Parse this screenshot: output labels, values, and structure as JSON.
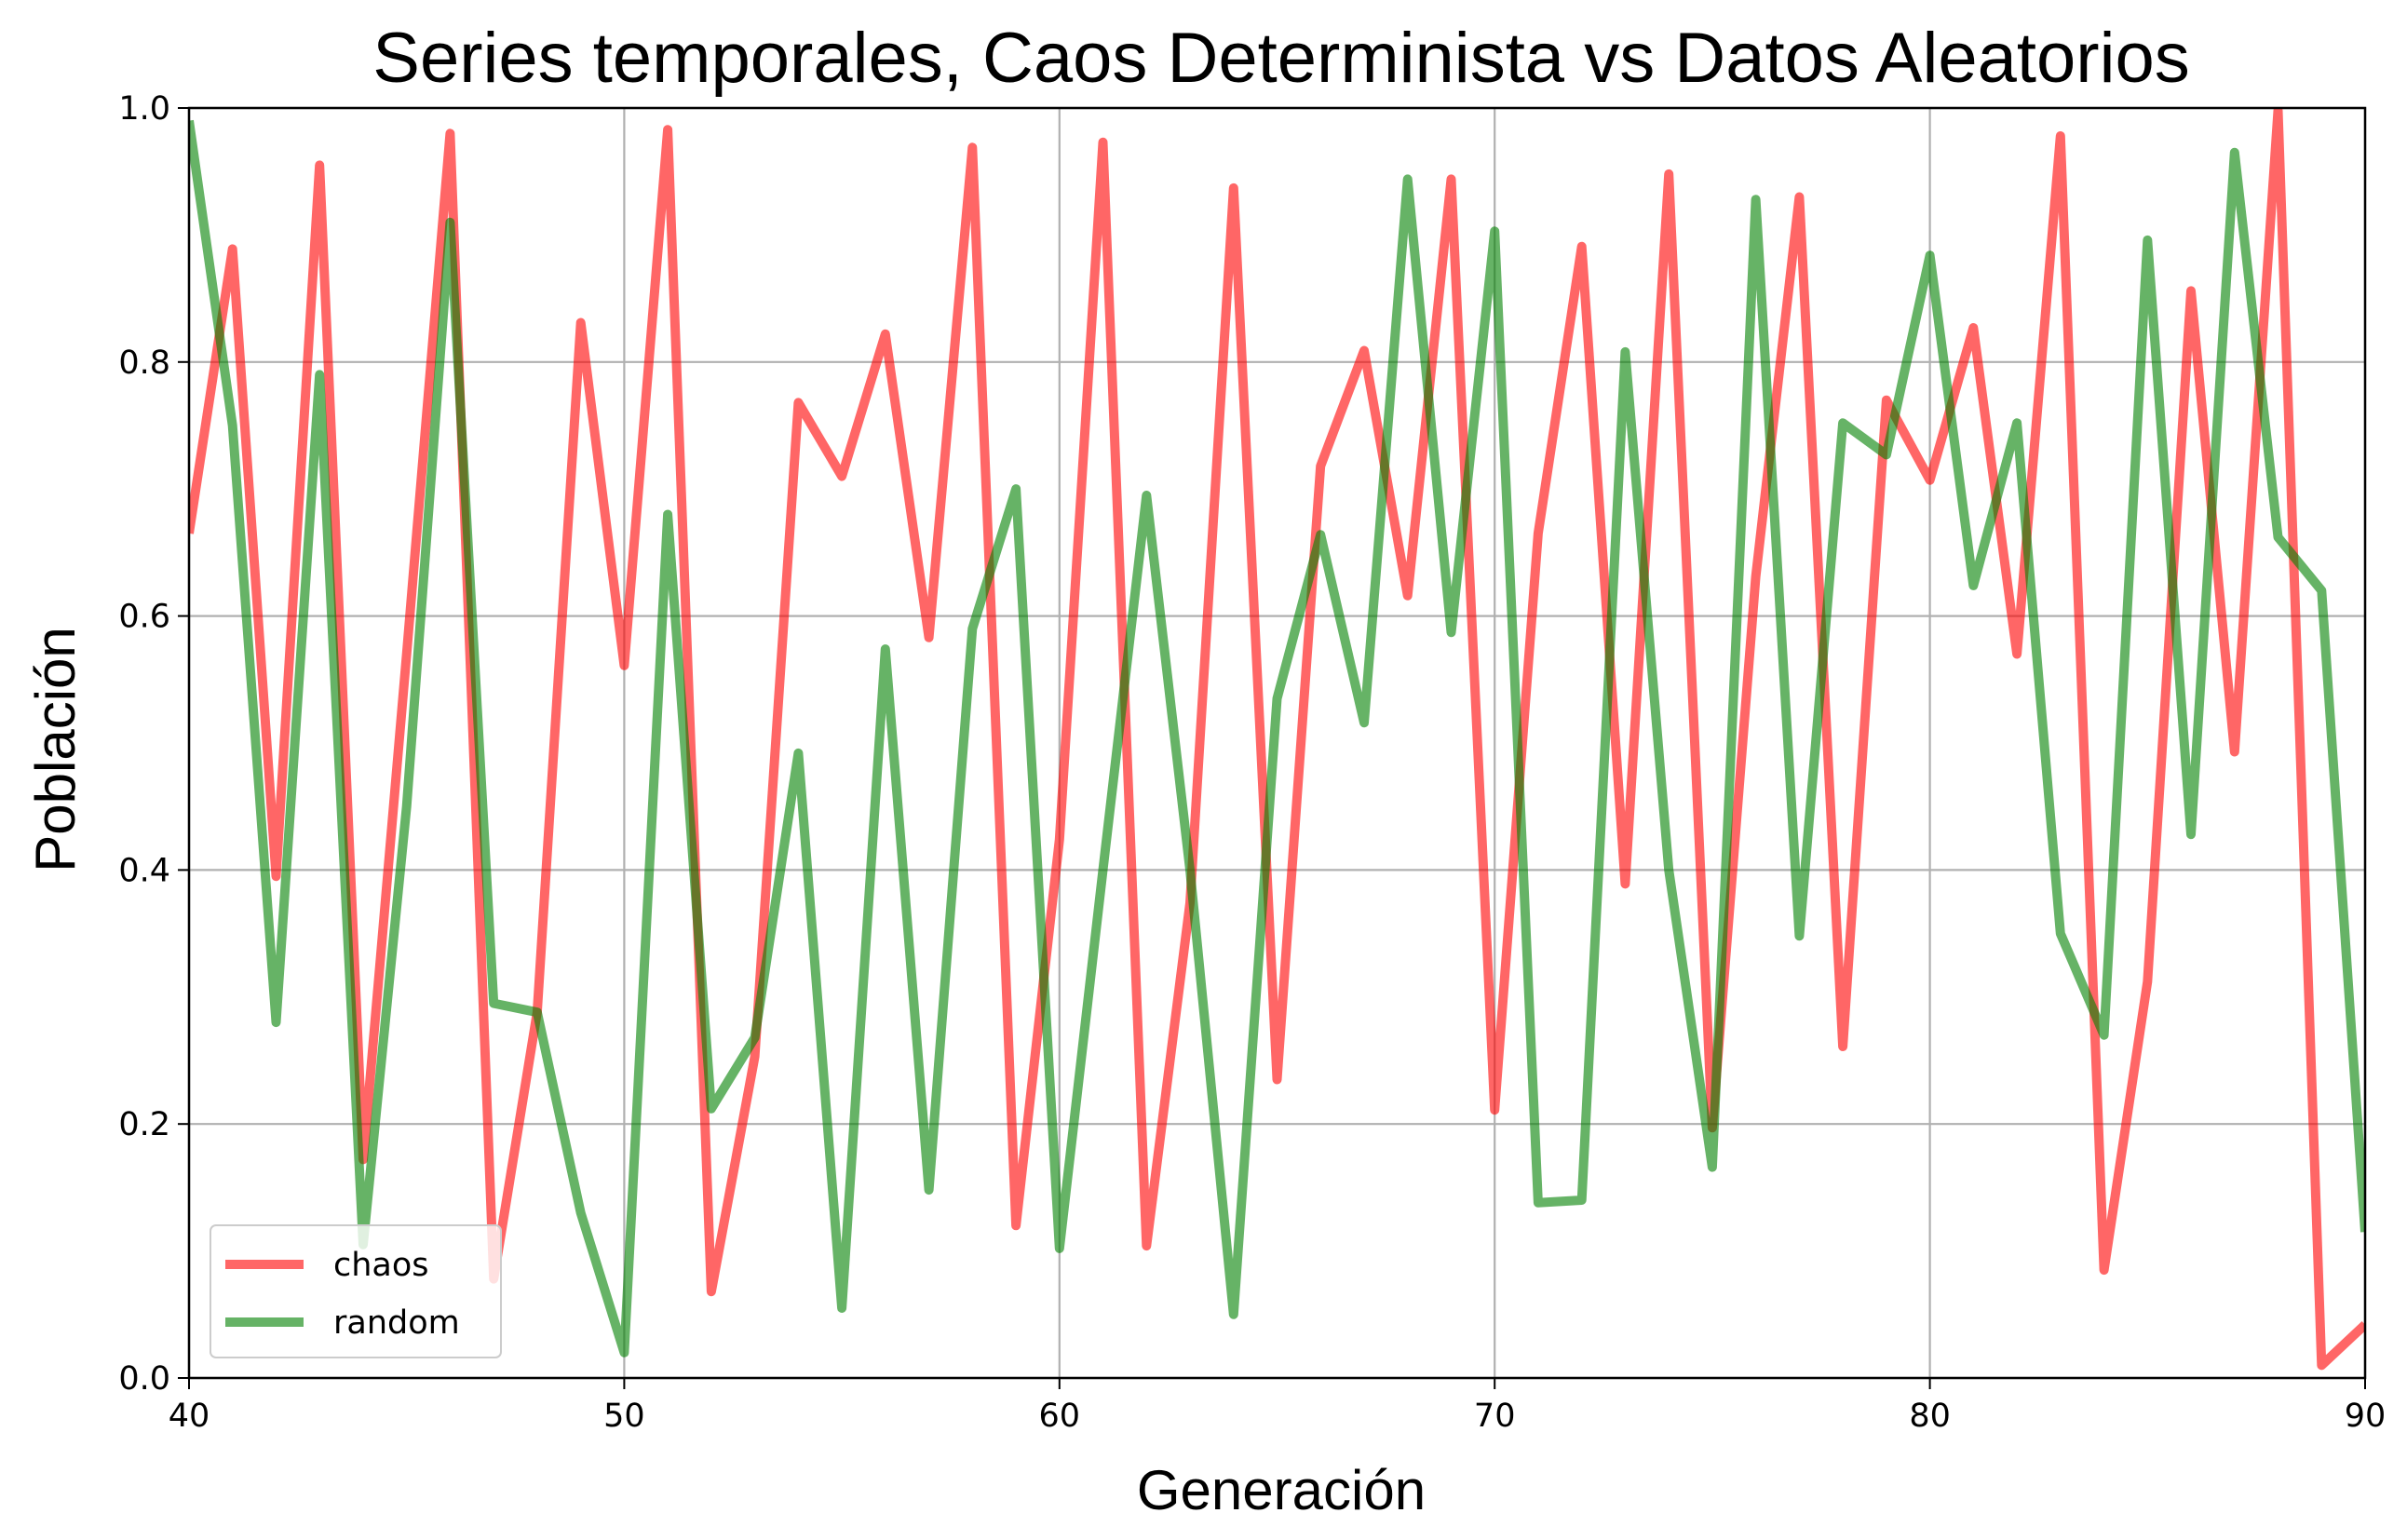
{
  "chart_data": {
    "type": "line",
    "title": "Series temporales, Caos Determinista vs Datos Aleatorios",
    "xlabel": "Generación",
    "ylabel": "Población",
    "xlim": [
      40,
      90
    ],
    "ylim": [
      0.0,
      1.0
    ],
    "x_ticks": [
      40,
      50,
      60,
      70,
      80,
      90
    ],
    "y_ticks": [
      0.0,
      0.2,
      0.4,
      0.6,
      0.8,
      1.0
    ],
    "x_tick_labels": [
      "40",
      "50",
      "60",
      "70",
      "80",
      "90"
    ],
    "y_tick_labels": [
      "0.0",
      "0.2",
      "0.4",
      "0.6",
      "0.8",
      "1.0"
    ],
    "grid": true,
    "legend_position": "lower-left",
    "x": [
      40,
      41,
      42,
      43,
      44,
      45,
      46,
      47,
      48,
      49,
      50,
      51,
      52,
      53,
      54,
      55,
      56,
      57,
      58,
      59,
      60,
      61,
      62,
      63,
      64,
      65,
      66,
      67,
      68,
      69,
      70,
      71,
      72,
      73,
      74,
      75,
      76,
      77,
      78,
      79,
      80,
      81,
      82,
      83,
      84,
      85,
      86,
      87,
      88,
      89,
      90
    ],
    "series": [
      {
        "name": "chaos",
        "color": "#ff0000",
        "opacity": 0.6,
        "values": [
          0.665,
          0.889,
          0.395,
          0.955,
          0.172,
          0.57,
          0.98,
          0.078,
          0.288,
          0.831,
          0.561,
          0.983,
          0.068,
          0.253,
          0.768,
          0.71,
          0.822,
          0.583,
          0.969,
          0.12,
          0.424,
          0.973,
          0.104,
          0.374,
          0.937,
          0.235,
          0.718,
          0.809,
          0.616,
          0.944,
          0.211,
          0.665,
          0.891,
          0.389,
          0.948,
          0.197,
          0.631,
          0.93,
          0.261,
          0.77,
          0.707,
          0.827,
          0.57,
          0.978,
          0.085,
          0.312,
          0.856,
          0.493,
          0.998,
          0.01,
          0.042
        ]
      },
      {
        "name": "random",
        "color": "#008000",
        "opacity": 0.6,
        "values": [
          0.99,
          0.75,
          0.28,
          0.79,
          0.105,
          0.45,
          0.91,
          0.295,
          0.288,
          0.13,
          0.02,
          0.68,
          0.212,
          0.268,
          0.492,
          0.055,
          0.574,
          0.148,
          0.59,
          0.7,
          0.102,
          0.4,
          0.695,
          0.4,
          0.05,
          0.535,
          0.664,
          0.516,
          0.944,
          0.587,
          0.903,
          0.138,
          0.14,
          0.808,
          0.4,
          0.166,
          0.928,
          0.348,
          0.752,
          0.727,
          0.884,
          0.624,
          0.752,
          0.35,
          0.27,
          0.896,
          0.428,
          0.965,
          0.662,
          0.62,
          0.115
        ]
      }
    ]
  }
}
